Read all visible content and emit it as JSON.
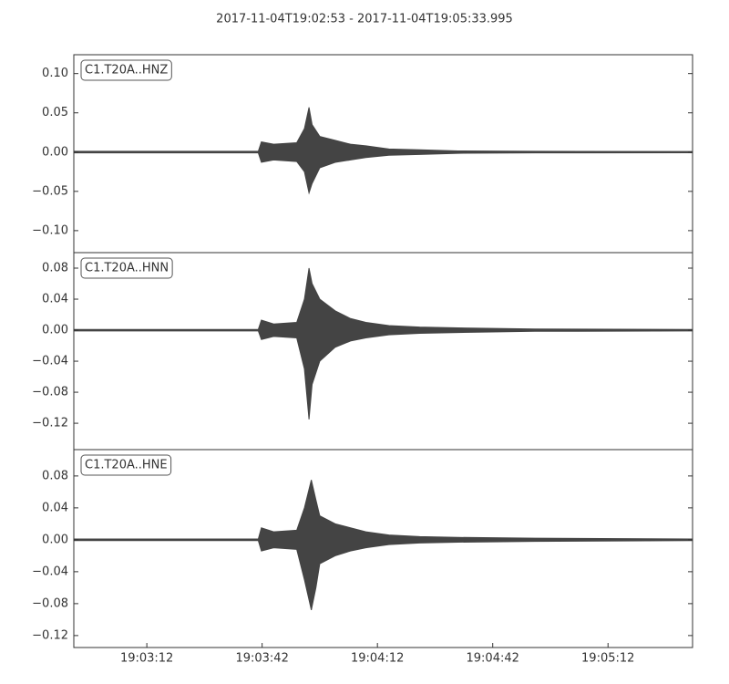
{
  "title": "2017-11-04T19:02:53  -  2017-11-04T19:05:33.995",
  "chart_data": [
    {
      "type": "area",
      "label": "C1.T20A..HNZ",
      "color": "#444444",
      "x": [
        0,
        48,
        48.8,
        52,
        58,
        60,
        61.2,
        62,
        64,
        68,
        72,
        76,
        82,
        90,
        100,
        120,
        160.995
      ],
      "upper": [
        0.001,
        0.001,
        0.013,
        0.01,
        0.012,
        0.03,
        0.057,
        0.035,
        0.02,
        0.015,
        0.01,
        0.008,
        0.004,
        0.003,
        0.0015,
        0.001,
        0.0008
      ],
      "lower": [
        -0.001,
        -0.001,
        -0.013,
        -0.01,
        -0.012,
        -0.025,
        -0.052,
        -0.04,
        -0.02,
        -0.013,
        -0.01,
        -0.007,
        -0.004,
        -0.003,
        -0.0015,
        -0.001,
        -0.0008
      ],
      "xlim": [
        0,
        160.995
      ],
      "ylim": [
        -0.128,
        0.124
      ],
      "yticks": [
        {
          "value": 0.1,
          "label": "0.10"
        },
        {
          "value": 0.05,
          "label": "0.05"
        },
        {
          "value": 0,
          "label": "0.00"
        },
        {
          "value": -0.05,
          "label": "−0.05"
        },
        {
          "value": -0.1,
          "label": "−0.10"
        }
      ]
    },
    {
      "type": "area",
      "label": "C1.T20A..HNN",
      "color": "#444444",
      "x": [
        0,
        48,
        48.8,
        52,
        58,
        60,
        61.2,
        62,
        64,
        68,
        72,
        76,
        82,
        90,
        100,
        120,
        160.995
      ],
      "upper": [
        0.001,
        0.001,
        0.013,
        0.008,
        0.01,
        0.04,
        0.08,
        0.06,
        0.04,
        0.025,
        0.015,
        0.01,
        0.006,
        0.004,
        0.003,
        0.0015,
        0.001
      ],
      "lower": [
        -0.001,
        -0.001,
        -0.012,
        -0.008,
        -0.01,
        -0.05,
        -0.115,
        -0.07,
        -0.04,
        -0.022,
        -0.014,
        -0.01,
        -0.006,
        -0.004,
        -0.003,
        -0.0015,
        -0.001
      ],
      "xlim": [
        0,
        160.995
      ],
      "ylim": [
        -0.154,
        0.1
      ],
      "yticks": [
        {
          "value": 0.08,
          "label": "0.08"
        },
        {
          "value": 0.04,
          "label": "0.04"
        },
        {
          "value": 0,
          "label": "0.00"
        },
        {
          "value": -0.04,
          "label": "−0.04"
        },
        {
          "value": -0.08,
          "label": "−0.08"
        },
        {
          "value": -0.12,
          "label": "−0.12"
        }
      ]
    },
    {
      "type": "area",
      "label": "C1.T20A..HNE",
      "color": "#444444",
      "x": [
        0,
        48,
        48.8,
        52,
        58,
        60,
        61.8,
        63,
        64,
        68,
        72,
        76,
        82,
        90,
        100,
        120,
        160.995
      ],
      "upper": [
        0.001,
        0.001,
        0.015,
        0.01,
        0.012,
        0.04,
        0.075,
        0.05,
        0.03,
        0.02,
        0.015,
        0.01,
        0.006,
        0.004,
        0.003,
        0.002,
        0.001
      ],
      "lower": [
        -0.001,
        -0.001,
        -0.014,
        -0.01,
        -0.012,
        -0.05,
        -0.088,
        -0.06,
        -0.03,
        -0.02,
        -0.014,
        -0.01,
        -0.006,
        -0.004,
        -0.003,
        -0.002,
        -0.001
      ],
      "xlim": [
        0,
        160.995
      ],
      "ylim": [
        -0.135,
        0.113
      ],
      "yticks": [
        {
          "value": 0.08,
          "label": "0.08"
        },
        {
          "value": 0.04,
          "label": "0.04"
        },
        {
          "value": 0,
          "label": "0.00"
        },
        {
          "value": -0.04,
          "label": "−0.04"
        },
        {
          "value": -0.08,
          "label": "−0.08"
        },
        {
          "value": -0.12,
          "label": "−0.12"
        }
      ],
      "xticks": [
        {
          "value": 19,
          "label": "19:03:12"
        },
        {
          "value": 49,
          "label": "19:03:42"
        },
        {
          "value": 79,
          "label": "19:04:12"
        },
        {
          "value": 109,
          "label": "19:04:42"
        },
        {
          "value": 139,
          "label": "19:05:12"
        }
      ]
    }
  ]
}
